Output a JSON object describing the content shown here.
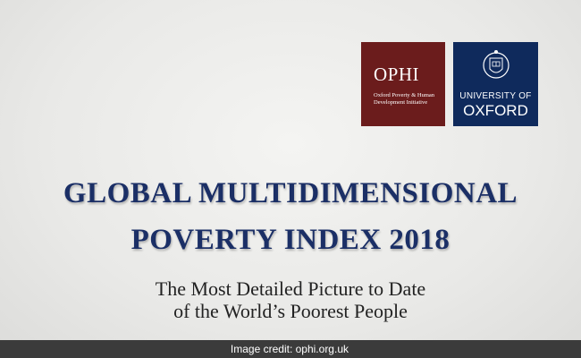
{
  "logos": {
    "ophi": {
      "name": "OPHI",
      "tagline": [
        "Oxford Poverty & Human",
        "Development Initiative"
      ]
    },
    "oxford": {
      "line1": "UNIVERSITY OF",
      "line2": "OXFORD"
    }
  },
  "title": [
    "GLOBAL MULTIDIMENSIONAL",
    "POVERTY INDEX 2018"
  ],
  "subtitle": [
    "The Most Detailed Picture to Date",
    "of the World’s Poorest People"
  ],
  "credit": "Image credit: ophi.org.uk"
}
